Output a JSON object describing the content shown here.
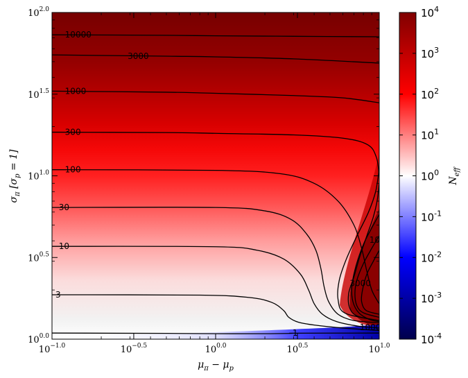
{
  "chart_data": {
    "type": "heatmap",
    "title": "",
    "xlabel": "μπ − μp",
    "ylabel": "σπ [σp = 1]",
    "x_scale": "log",
    "y_scale": "log",
    "xlim": [
      0.1,
      10
    ],
    "ylim": [
      1,
      100
    ],
    "x_ticks": [
      {
        "base": "10",
        "exp": "−1.0",
        "value": 0.1
      },
      {
        "base": "10",
        "exp": "−0.5",
        "value": 0.316
      },
      {
        "base": "10",
        "exp": "0.0",
        "value": 1
      },
      {
        "base": "10",
        "exp": "0.5",
        "value": 3.162
      },
      {
        "base": "10",
        "exp": "1.0",
        "value": 10
      }
    ],
    "y_ticks": [
      {
        "base": "10",
        "exp": "0.0",
        "value": 1
      },
      {
        "base": "10",
        "exp": "0.5",
        "value": 3.162
      },
      {
        "base": "10",
        "exp": "1.0",
        "value": 10
      },
      {
        "base": "10",
        "exp": "1.5",
        "value": 31.62
      },
      {
        "base": "10",
        "exp": "2.0",
        "value": 100
      }
    ],
    "colorbar": {
      "label": "Neff",
      "scale": "log",
      "range": [
        0.0001,
        10000
      ],
      "colormap": "seismic",
      "ticks": [
        {
          "base": "10",
          "exp": "4",
          "value": 10000
        },
        {
          "base": "10",
          "exp": "3",
          "value": 1000
        },
        {
          "base": "10",
          "exp": "2",
          "value": 100
        },
        {
          "base": "10",
          "exp": "1",
          "value": 10
        },
        {
          "base": "10",
          "exp": "0",
          "value": 1
        },
        {
          "base": "10",
          "exp": "-1",
          "value": 0.1
        },
        {
          "base": "10",
          "exp": "-2",
          "value": 0.01
        },
        {
          "base": "10",
          "exp": "-3",
          "value": 0.001
        },
        {
          "base": "10",
          "exp": "-4",
          "value": 0.0001
        }
      ]
    },
    "contour_levels": [
      1,
      3,
      10,
      30,
      100,
      300,
      1000,
      3000,
      10000
    ],
    "contour_labels": [
      {
        "text": "10000",
        "x": 0.12,
        "y": 73
      },
      {
        "text": "3000",
        "x": 0.29,
        "y": 54
      },
      {
        "text": "1000",
        "x": 0.12,
        "y": 33
      },
      {
        "text": "300",
        "x": 0.12,
        "y": 18.5
      },
      {
        "text": "100",
        "x": 0.12,
        "y": 10.9
      },
      {
        "text": "30",
        "x": 0.11,
        "y": 6.4
      },
      {
        "text": "10",
        "x": 0.11,
        "y": 3.7
      },
      {
        "text": "3",
        "x": 0.105,
        "y": 1.87
      },
      {
        "text": "1",
        "x": 2.95,
        "y": 1.09
      },
      {
        "text": "1000",
        "x": 8.7,
        "y": 4.05
      },
      {
        "text": "3000",
        "x": 6.6,
        "y": 2.2
      },
      {
        "text": "10000",
        "x": 7.6,
        "y": 1.18
      }
    ]
  }
}
